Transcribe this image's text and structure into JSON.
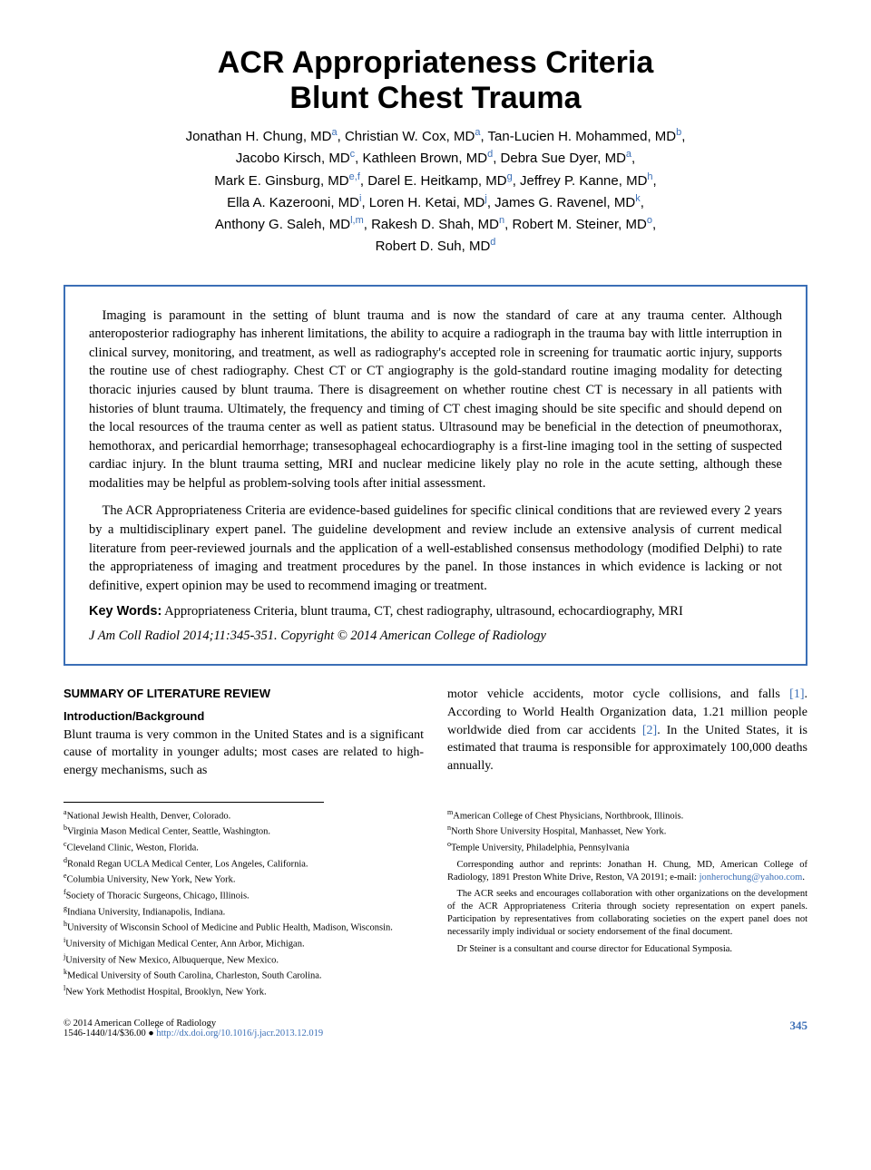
{
  "title_line1": "ACR Appropriateness Criteria",
  "title_line2": "Blunt Chest Trauma",
  "authors_html": "Jonathan H. Chung, MD<sup>a</sup>, Christian W. Cox, MD<sup>a</sup>, Tan-Lucien H. Mohammed, MD<sup>b</sup>,<br>Jacobo Kirsch, MD<sup>c</sup>, Kathleen Brown, MD<sup>d</sup>, Debra Sue Dyer, MD<sup>a</sup>,<br>Mark E. Ginsburg, MD<sup>e,f</sup>, Darel E. Heitkamp, MD<sup>g</sup>, Jeffrey P. Kanne, MD<sup>h</sup>,<br>Ella A. Kazerooni, MD<sup>i</sup>, Loren H. Ketai, MD<sup>j</sup>, James G. Ravenel, MD<sup>k</sup>,<br>Anthony G. Saleh, MD<sup>l,m</sup>, Rakesh D. Shah, MD<sup>n</sup>, Robert M. Steiner, MD<sup>o</sup>,<br>Robert D. Suh, MD<sup>d</sup>",
  "abstract": {
    "p1": "Imaging is paramount in the setting of blunt trauma and is now the standard of care at any trauma center. Although anteroposterior radiography has inherent limitations, the ability to acquire a radiograph in the trauma bay with little interruption in clinical survey, monitoring, and treatment, as well as radiography's accepted role in screening for traumatic aortic injury, supports the routine use of chest radiography. Chest CT or CT angiography is the gold-standard routine imaging modality for detecting thoracic injuries caused by blunt trauma. There is disagreement on whether routine chest CT is necessary in all patients with histories of blunt trauma. Ultimately, the frequency and timing of CT chest imaging should be site specific and should depend on the local resources of the trauma center as well as patient status. Ultrasound may be beneficial in the detection of pneumothorax, hemothorax, and pericardial hemorrhage; transesophageal echocardiography is a first-line imaging tool in the setting of suspected cardiac injury. In the blunt trauma setting, MRI and nuclear medicine likely play no role in the acute setting, although these modalities may be helpful as problem-solving tools after initial assessment.",
    "p2": "The ACR Appropriateness Criteria are evidence-based guidelines for specific clinical conditions that are reviewed every 2 years by a multidisciplinary expert panel. The guideline development and review include an extensive analysis of current medical literature from peer-reviewed journals and the application of a well-established consensus methodology (modified Delphi) to rate the appropriateness of imaging and treatment procedures by the panel. In those instances in which evidence is lacking or not definitive, expert opinion may be used to recommend imaging or treatment."
  },
  "keywords_label": "Key Words:",
  "keywords": " Appropriateness Criteria, blunt trauma, CT, chest radiography, ultrasound, echocardiography, MRI",
  "citation": "J Am Coll Radiol 2014;11:345-351. Copyright © 2014 American College of Radiology",
  "section_heading": "SUMMARY OF LITERATURE REVIEW",
  "subheading": "Introduction/Background",
  "body_left": "Blunt trauma is very common in the United States and is a significant cause of mortality in younger adults; most cases are related to high-energy mechanisms, such as",
  "body_right_pre": "motor vehicle accidents, motor cycle collisions, and falls ",
  "ref1": "[1]",
  "body_right_mid": ". According to World Health Organization data, 1.21 million people worldwide died from car accidents ",
  "ref2": "[2]",
  "body_right_post": ". In the United States, it is estimated that trauma is responsible for approximately 100,000 deaths annually.",
  "affils_left": [
    "<sup>a</sup>National Jewish Health, Denver, Colorado.",
    "<sup>b</sup>Virginia Mason Medical Center, Seattle, Washington.",
    "<sup>c</sup>Cleveland Clinic, Weston, Florida.",
    "<sup>d</sup>Ronald Regan UCLA Medical Center, Los Angeles, California.",
    "<sup>e</sup>Columbia University, New York, New York.",
    "<sup>f</sup>Society of Thoracic Surgeons, Chicago, Illinois.",
    "<sup>g</sup>Indiana University, Indianapolis, Indiana.",
    "<sup>h</sup>University of Wisconsin School of Medicine and Public Health, Madison, Wisconsin.",
    "<sup>i</sup>University of Michigan Medical Center, Ann Arbor, Michigan.",
    "<sup>j</sup>University of New Mexico, Albuquerque, New Mexico.",
    "<sup>k</sup>Medical University of South Carolina, Charleston, South Carolina.",
    "<sup>l</sup>New York Methodist Hospital, Brooklyn, New York."
  ],
  "affils_right": [
    "<sup>m</sup>American College of Chest Physicians, Northbrook, Illinois.",
    "<sup>n</sup>North Shore University Hospital, Manhasset, New York.",
    "<sup>o</sup>Temple University, Philadelphia, Pennsylvania"
  ],
  "corresp": "Corresponding author and reprints: Jonathan H. Chung, MD, American College of Radiology, 1891 Preston White Drive, Reston, VA 20191; e-mail: ",
  "corresp_email": "jonherochung@yahoo.com",
  "corresp_period": ".",
  "acr_note": "The ACR seeks and encourages collaboration with other organizations on the development of the ACR Appropriateness Criteria through society representation on expert panels. Participation by representatives from collaborating societies on the expert panel does not necessarily imply individual or society endorsement of the final document.",
  "steiner_note": "Dr Steiner is a consultant and course director for Educational Symposia.",
  "footer_left": "© 2014 American College of Radiology",
  "footer_left2_pre": "1546-1440/14/$36.00 ",
  "footer_doi_bullet": "●",
  "footer_doi": " http://dx.doi.org/10.1016/j.jacr.2013.12.019",
  "page_number": "345"
}
